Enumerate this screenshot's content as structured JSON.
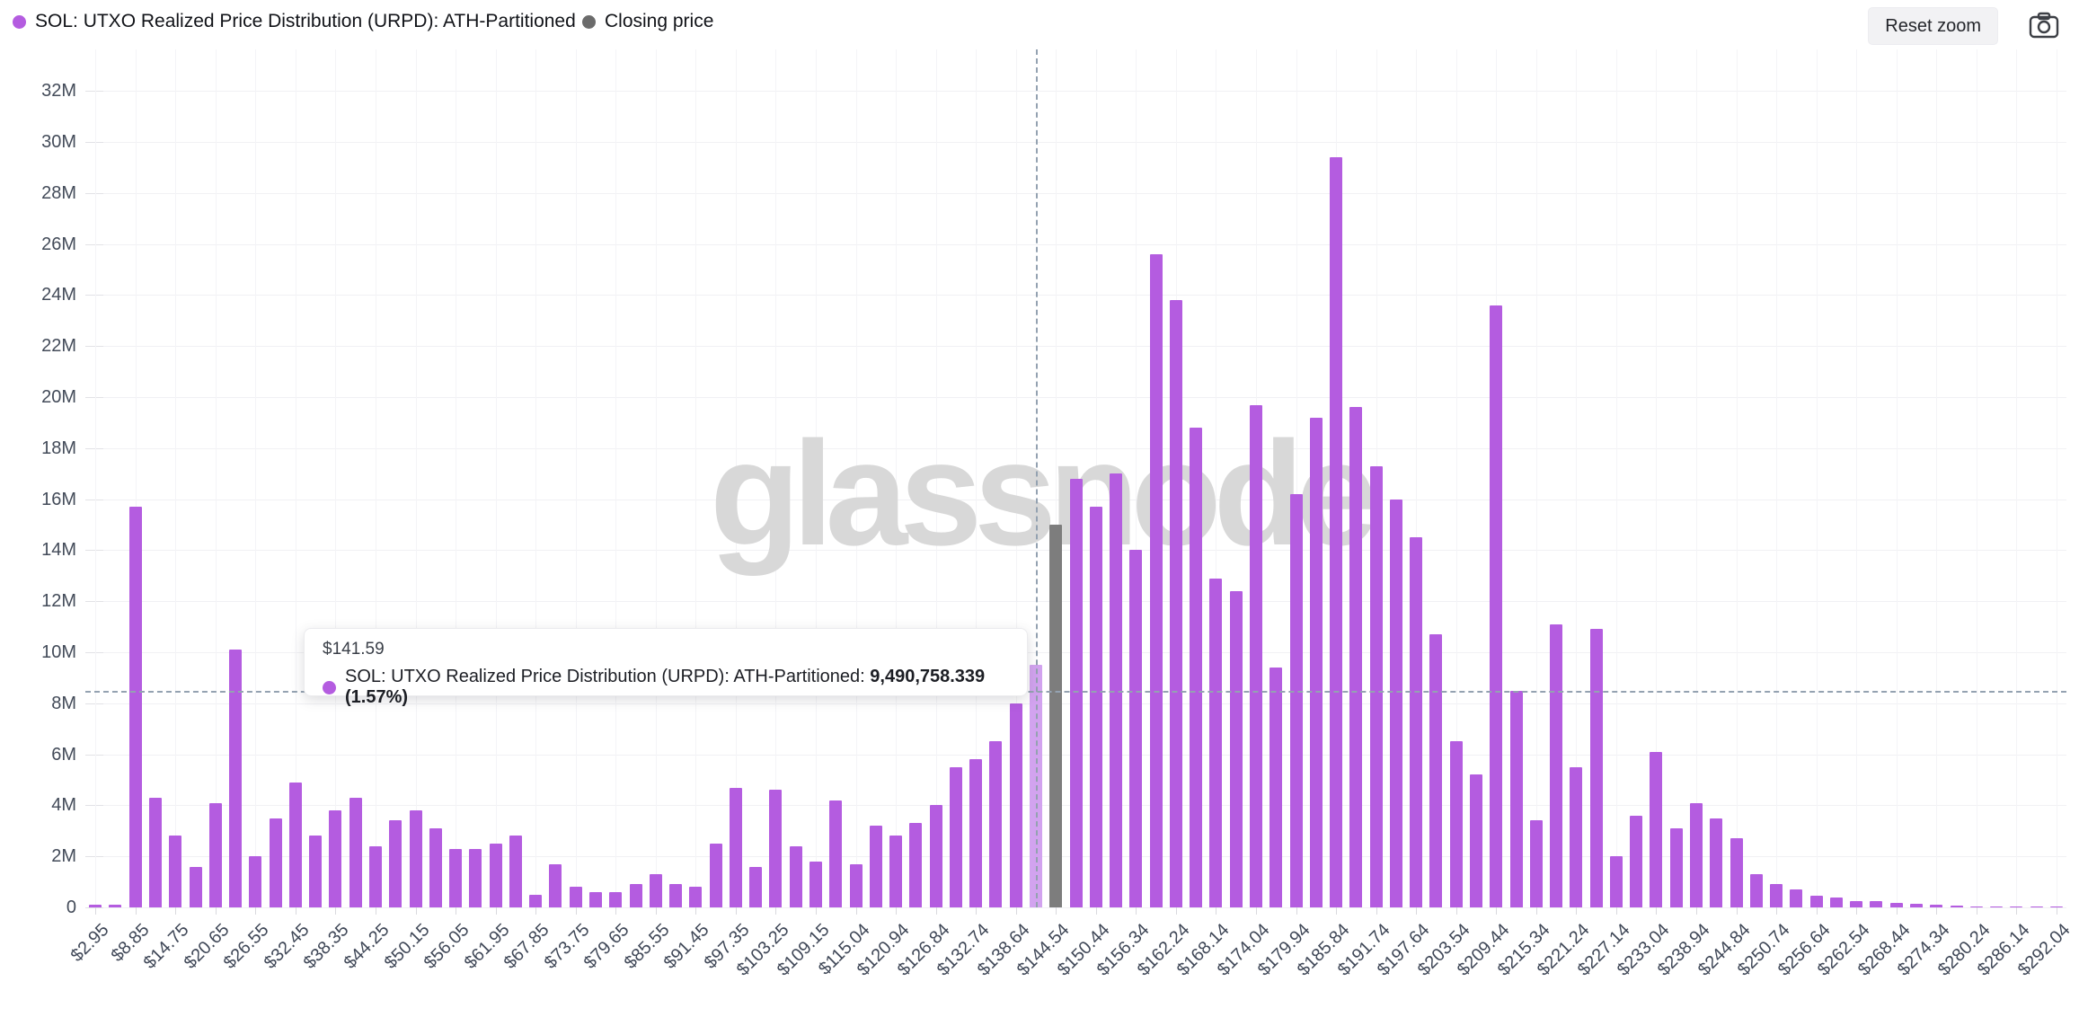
{
  "header": {
    "legend": [
      {
        "label": "SOL: UTXO Realized Price Distribution (URPD): ATH-Partitioned",
        "color": "#b45ce0"
      },
      {
        "label": "Closing price",
        "color": "#6b6b6b"
      }
    ],
    "reset_zoom_label": "Reset zoom"
  },
  "watermark": "glassnode",
  "tooltip": {
    "price": "$141.59",
    "series": "SOL: UTXO Realized Price Distribution (URPD): ATH-Partitioned:",
    "value": "9,490,758.339 (1.57%)",
    "dot_color": "#b45ce0"
  },
  "colors": {
    "bar": "#b45ce0",
    "bar_highlight": "#d2a3ef",
    "bar_closing": "#7d7d7d",
    "grid": "#f1f1f4",
    "axis_text": "#3f4757",
    "crosshair": "#94a2b1",
    "watermark": "#d8d8d8"
  },
  "chart_data": {
    "type": "bar",
    "title": "SOL: UTXO Realized Price Distribution (URPD): ATH-Partitioned",
    "xlabel": "",
    "ylabel": "",
    "unit": "M",
    "ylim": [
      0,
      33
    ],
    "grid": true,
    "legend_position": "top-left",
    "y_ticks": [
      "0",
      "2M",
      "4M",
      "6M",
      "8M",
      "10M",
      "12M",
      "14M",
      "16M",
      "18M",
      "20M",
      "22M",
      "24M",
      "26M",
      "28M",
      "30M",
      "32M"
    ],
    "x_tick_labels": [
      "$2.95",
      "$8.85",
      "$14.75",
      "$20.65",
      "$26.55",
      "$32.45",
      "$38.35",
      "$44.25",
      "$50.15",
      "$56.05",
      "$61.95",
      "$67.85",
      "$73.75",
      "$79.65",
      "$85.55",
      "$91.45",
      "$97.35",
      "$103.25",
      "$109.15",
      "$115.04",
      "$120.94",
      "$126.84",
      "$132.74",
      "$138.64",
      "$144.54",
      "$150.44",
      "$156.34",
      "$162.24",
      "$168.14",
      "$174.04",
      "$179.94",
      "$185.84",
      "$191.74",
      "$197.64",
      "$203.54",
      "$209.44",
      "$215.34",
      "$221.24",
      "$227.14",
      "$233.04",
      "$238.94",
      "$244.84",
      "$250.74",
      "$256.64",
      "$262.54",
      "$268.44",
      "$274.34",
      "$280.24",
      "$286.14",
      "$292.04"
    ],
    "x_labels_every_n_bars": 2,
    "values": [
      0.1,
      0.12,
      15.7,
      4.3,
      2.8,
      1.6,
      4.1,
      10.1,
      2.0,
      3.5,
      4.9,
      2.8,
      3.8,
      4.3,
      2.4,
      3.4,
      3.8,
      3.1,
      2.3,
      2.3,
      2.5,
      2.8,
      0.5,
      1.7,
      0.8,
      0.6,
      0.6,
      0.9,
      1.3,
      0.9,
      0.8,
      2.5,
      4.7,
      1.6,
      4.6,
      2.4,
      1.8,
      4.2,
      1.7,
      3.2,
      2.8,
      3.3,
      4.0,
      5.5,
      5.8,
      6.5,
      8.0,
      9.49,
      15.0,
      16.8,
      15.7,
      17.0,
      14.0,
      25.6,
      23.8,
      18.8,
      12.9,
      12.4,
      19.7,
      9.4,
      16.2,
      19.2,
      29.4,
      19.6,
      17.3,
      16.0,
      14.5,
      10.7,
      6.5,
      5.2,
      23.6,
      8.5,
      3.4,
      11.1,
      5.5,
      10.9,
      2.0,
      3.6,
      6.1,
      3.1,
      4.1,
      3.5,
      2.7,
      1.3,
      0.9,
      0.7,
      0.45,
      0.4,
      0.25,
      0.25,
      0.18,
      0.15,
      0.1,
      0.06,
      0.04,
      0.03,
      0.02,
      0.02,
      0.02
    ],
    "highlighted_bar": {
      "index": 47,
      "price": "$141.59",
      "value": 9.490758339
    },
    "closing_price_bar": {
      "index": 48,
      "price": "$144.54",
      "value": 15.0
    },
    "crosshair": {
      "vertical_at_bar_index": 47,
      "horizontal_at_value": 8.5
    }
  }
}
